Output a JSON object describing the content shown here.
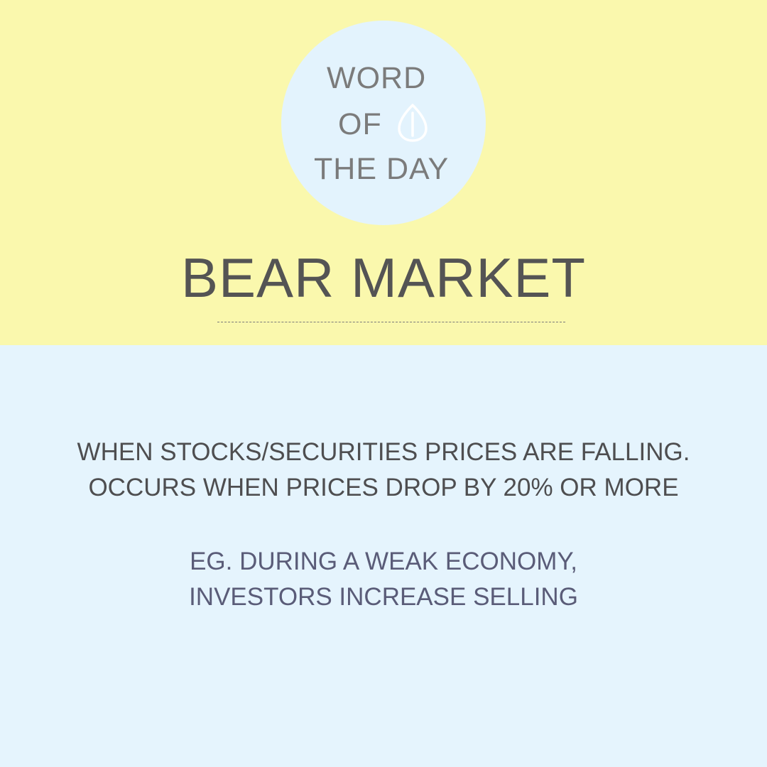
{
  "badge": {
    "line1": "WORD",
    "line2": "OF",
    "line3": "THE DAY",
    "icon": "seed-icon"
  },
  "headline": "BEAR MARKET",
  "definition": {
    "line1": "WHEN STOCKS/SECURITIES PRICES ARE FALLING.",
    "line2": "OCCURS WHEN PRICES DROP BY 20% OR MORE"
  },
  "example": {
    "line1": "EG. DURING A WEAK ECONOMY,",
    "line2": "INVESTORS INCREASE SELLING"
  },
  "colors": {
    "top_background": "#faf8ad",
    "bottom_background": "#e5f4fd",
    "badge_background": "#e3f3fd",
    "badge_text": "#7b7b7b",
    "headline_text": "#545454",
    "example_text": "#5a5c78"
  }
}
